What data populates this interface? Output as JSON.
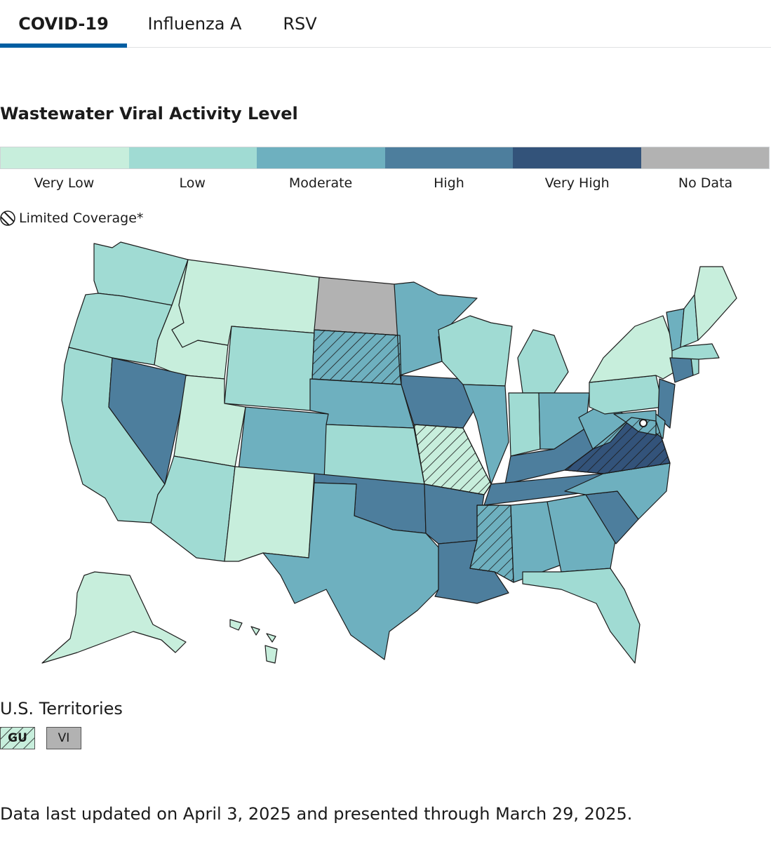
{
  "tabs": [
    {
      "label": "COVID-19",
      "active": true
    },
    {
      "label": "Influenza A",
      "active": false
    },
    {
      "label": "RSV",
      "active": false
    }
  ],
  "title": "Wastewater Viral Activity Level",
  "legend": [
    {
      "label": "Very Low",
      "color": "#c7eedc"
    },
    {
      "label": "Low",
      "color": "#a0dbd3"
    },
    {
      "label": "Moderate",
      "color": "#6eb0bf"
    },
    {
      "label": "High",
      "color": "#4d7e9d"
    },
    {
      "label": "Very High",
      "color": "#33537a"
    },
    {
      "label": "No Data",
      "color": "#b2b2b2"
    }
  ],
  "coverage_label": "Limited Coverage*",
  "states": [
    {
      "abbr": "WA",
      "level": "Low"
    },
    {
      "abbr": "OR",
      "level": "Low"
    },
    {
      "abbr": "CA",
      "level": "Low"
    },
    {
      "abbr": "ID",
      "level": "Very Low"
    },
    {
      "abbr": "NV",
      "level": "High"
    },
    {
      "abbr": "MT",
      "level": "Very Low"
    },
    {
      "abbr": "WY",
      "level": "Low"
    },
    {
      "abbr": "UT",
      "level": "Very Low"
    },
    {
      "abbr": "AZ",
      "level": "Low"
    },
    {
      "abbr": "CO",
      "level": "Moderate"
    },
    {
      "abbr": "NM",
      "level": "Very Low"
    },
    {
      "abbr": "ND",
      "level": "No Data"
    },
    {
      "abbr": "SD",
      "level": "Moderate",
      "limited": true
    },
    {
      "abbr": "NE",
      "level": "Moderate"
    },
    {
      "abbr": "KS",
      "level": "Low"
    },
    {
      "abbr": "OK",
      "level": "High"
    },
    {
      "abbr": "TX",
      "level": "Moderate"
    },
    {
      "abbr": "MN",
      "level": "Moderate"
    },
    {
      "abbr": "IA",
      "level": "High"
    },
    {
      "abbr": "MO",
      "level": "Very Low",
      "limited": true
    },
    {
      "abbr": "AR",
      "level": "High"
    },
    {
      "abbr": "LA",
      "level": "High"
    },
    {
      "abbr": "WI",
      "level": "Low"
    },
    {
      "abbr": "IL",
      "level": "Moderate"
    },
    {
      "abbr": "MI",
      "level": "Low"
    },
    {
      "abbr": "IN",
      "level": "Low"
    },
    {
      "abbr": "OH",
      "level": "Moderate"
    },
    {
      "abbr": "KY",
      "level": "High"
    },
    {
      "abbr": "TN",
      "level": "High"
    },
    {
      "abbr": "MS",
      "level": "Moderate",
      "limited": true
    },
    {
      "abbr": "AL",
      "level": "Moderate"
    },
    {
      "abbr": "GA",
      "level": "Moderate"
    },
    {
      "abbr": "FL",
      "level": "Low"
    },
    {
      "abbr": "SC",
      "level": "High"
    },
    {
      "abbr": "NC",
      "level": "Moderate"
    },
    {
      "abbr": "VA",
      "level": "Very High",
      "limited": true
    },
    {
      "abbr": "WV",
      "level": "Moderate"
    },
    {
      "abbr": "PA",
      "level": "Low"
    },
    {
      "abbr": "NY",
      "level": "Very Low"
    },
    {
      "abbr": "NJ",
      "level": "High"
    },
    {
      "abbr": "DE",
      "level": "Moderate"
    },
    {
      "abbr": "MD",
      "level": "Moderate"
    },
    {
      "abbr": "CT",
      "level": "High"
    },
    {
      "abbr": "RI",
      "level": "Low"
    },
    {
      "abbr": "MA",
      "level": "Low"
    },
    {
      "abbr": "VT",
      "level": "Moderate"
    },
    {
      "abbr": "NH",
      "level": "Low"
    },
    {
      "abbr": "ME",
      "level": "Very Low"
    },
    {
      "abbr": "AK",
      "level": "Very Low"
    },
    {
      "abbr": "HI",
      "level": "Very Low"
    }
  ],
  "territories_heading": "U.S. Territories",
  "territories": [
    {
      "label": "GU",
      "level": "Very Low",
      "limited": true
    },
    {
      "label": "VI",
      "level": "No Data"
    }
  ],
  "footer": "Data last updated on April 3, 2025 and presented through March 29, 2025."
}
